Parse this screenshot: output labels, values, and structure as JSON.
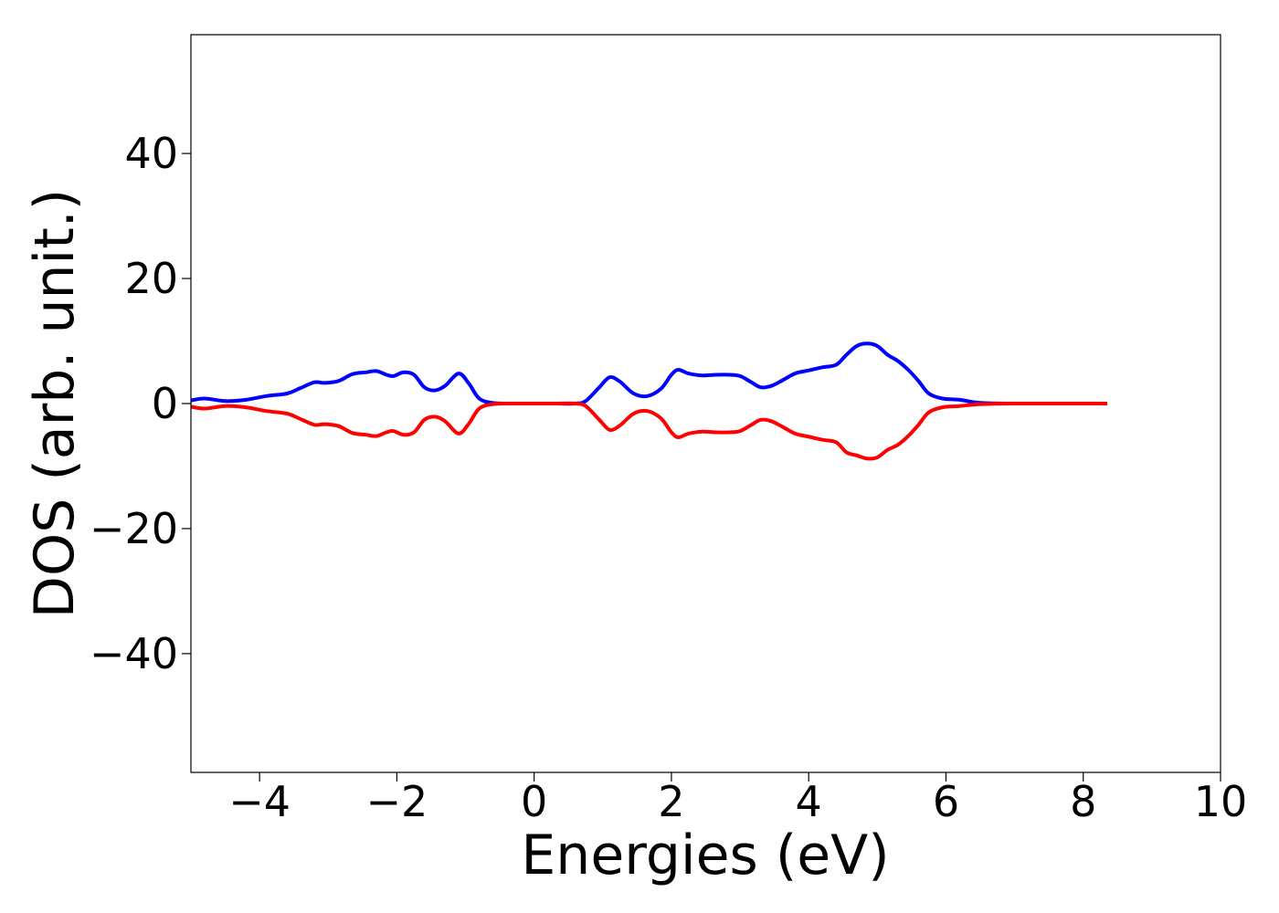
{
  "chart_data": {
    "type": "line",
    "title": "",
    "xlabel": "Energies (eV)",
    "ylabel": "DOS (arb. unit.)",
    "xlim": [
      -5,
      10
    ],
    "ylim": [
      -59,
      59
    ],
    "xticks": [
      -4,
      -2,
      0,
      2,
      4,
      6,
      8,
      10
    ],
    "yticks": [
      -40,
      -20,
      0,
      20,
      40
    ],
    "xtick_labels": [
      "−4",
      "−2",
      "0",
      "2",
      "4",
      "6",
      "8",
      "10"
    ],
    "ytick_labels": [
      "−40",
      "−20",
      "0",
      "20",
      "40"
    ],
    "grid": false,
    "legend": null,
    "series": [
      {
        "color": "#0000ff",
        "x": [
          -5.0,
          -4.8,
          -4.5,
          -4.2,
          -3.9,
          -3.6,
          -3.4,
          -3.2,
          -3.05,
          -2.85,
          -2.65,
          -2.45,
          -2.3,
          -2.15,
          -2.05,
          -1.9,
          -1.75,
          -1.6,
          -1.45,
          -1.3,
          -1.1,
          -0.95,
          -0.8,
          -0.6,
          -0.3,
          0.0,
          0.3,
          0.6,
          0.75,
          0.95,
          1.1,
          1.25,
          1.45,
          1.65,
          1.85,
          2.0,
          2.1,
          2.25,
          2.45,
          2.65,
          2.85,
          3.0,
          3.15,
          3.3,
          3.45,
          3.6,
          3.8,
          4.0,
          4.2,
          4.4,
          4.55,
          4.7,
          4.85,
          5.0,
          5.15,
          5.3,
          5.45,
          5.6,
          5.75,
          5.95,
          6.2,
          6.5,
          7.0,
          8.0,
          8.35
        ],
        "y": [
          0.5,
          0.8,
          0.4,
          0.6,
          1.2,
          1.6,
          2.5,
          3.4,
          3.3,
          3.6,
          4.7,
          5.0,
          5.2,
          4.6,
          4.4,
          5.0,
          4.6,
          2.6,
          2.1,
          2.8,
          4.8,
          3.2,
          0.8,
          0.1,
          0.0,
          0.0,
          0.0,
          0.0,
          0.4,
          2.6,
          4.2,
          3.5,
          1.6,
          1.2,
          2.4,
          4.6,
          5.4,
          4.8,
          4.5,
          4.6,
          4.6,
          4.4,
          3.5,
          2.6,
          2.8,
          3.6,
          4.8,
          5.3,
          5.8,
          6.2,
          7.8,
          9.2,
          9.6,
          9.2,
          7.8,
          6.8,
          5.4,
          3.6,
          1.6,
          0.8,
          0.6,
          0.1,
          0.0,
          0.0,
          0.0
        ]
      },
      {
        "color": "#ff0000",
        "x": [
          -5.0,
          -4.8,
          -4.5,
          -4.2,
          -3.9,
          -3.6,
          -3.4,
          -3.2,
          -3.05,
          -2.85,
          -2.65,
          -2.45,
          -2.3,
          -2.15,
          -2.05,
          -1.9,
          -1.75,
          -1.6,
          -1.45,
          -1.3,
          -1.1,
          -0.95,
          -0.8,
          -0.6,
          -0.3,
          0.0,
          0.3,
          0.6,
          0.75,
          0.95,
          1.1,
          1.25,
          1.45,
          1.65,
          1.85,
          2.0,
          2.1,
          2.25,
          2.45,
          2.65,
          2.85,
          3.0,
          3.15,
          3.3,
          3.45,
          3.6,
          3.8,
          4.0,
          4.2,
          4.4,
          4.55,
          4.7,
          4.85,
          5.0,
          5.15,
          5.3,
          5.45,
          5.6,
          5.75,
          5.95,
          6.2,
          6.5,
          7.0,
          8.0,
          8.35
        ],
        "y": [
          -0.5,
          -0.8,
          -0.4,
          -0.6,
          -1.2,
          -1.6,
          -2.5,
          -3.4,
          -3.3,
          -3.6,
          -4.7,
          -5.0,
          -5.2,
          -4.6,
          -4.4,
          -5.0,
          -4.6,
          -2.6,
          -2.1,
          -2.8,
          -4.8,
          -3.2,
          -0.8,
          -0.1,
          0.0,
          0.0,
          0.0,
          0.0,
          -0.4,
          -2.6,
          -4.2,
          -3.5,
          -1.6,
          -1.2,
          -2.4,
          -4.6,
          -5.4,
          -4.8,
          -4.5,
          -4.6,
          -4.6,
          -4.4,
          -3.5,
          -2.6,
          -2.8,
          -3.6,
          -4.8,
          -5.3,
          -5.8,
          -6.2,
          -7.8,
          -8.3,
          -8.8,
          -8.6,
          -7.4,
          -6.6,
          -5.2,
          -3.4,
          -1.4,
          -0.6,
          -0.4,
          -0.1,
          0.0,
          0.0,
          0.0
        ]
      }
    ]
  }
}
